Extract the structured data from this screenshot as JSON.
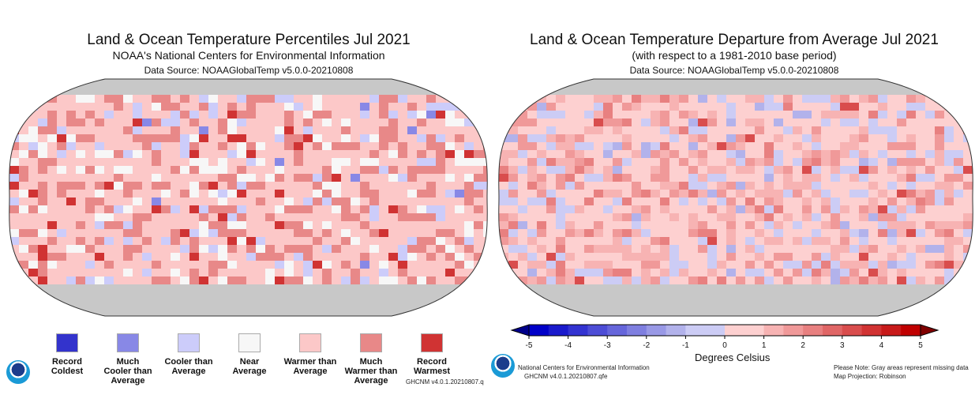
{
  "left_map": {
    "title": "Land & Ocean Temperature Percentiles Jul 2021",
    "subtitle": "NOAA's National Centers for Environmental Information",
    "data_source": "Data Source: NOAAGlobalTemp v5.0.0-20210808",
    "legend": [
      {
        "label_1": "Record",
        "label_2": "Coldest",
        "label_3": "",
        "color": "#3333cc"
      },
      {
        "label_1": "Much",
        "label_2": "Cooler than",
        "label_3": "Average",
        "color": "#8888e6"
      },
      {
        "label_1": "Cooler than",
        "label_2": "Average",
        "label_3": "",
        "color": "#ccccfa"
      },
      {
        "label_1": "Near",
        "label_2": "Average",
        "label_3": "",
        "color": "#f7f7f7"
      },
      {
        "label_1": "Warmer than",
        "label_2": "Average",
        "label_3": "",
        "color": "#fcc8c8"
      },
      {
        "label_1": "Much",
        "label_2": "Warmer than",
        "label_3": "Average",
        "color": "#e88888"
      },
      {
        "label_1": "Record",
        "label_2": "Warmest",
        "label_3": "",
        "color": "#d03333"
      }
    ],
    "footer": "GHCNM v4.0.1.20210807.q",
    "missing_color": "#c8c8c8"
  },
  "right_map": {
    "title": "Land & Ocean Temperature Departure from Average Jul 2021",
    "subtitle": "(with respect to a 1981-2010 base period)",
    "data_source": "Data Source: NOAAGlobalTemp v5.0.0-20210808",
    "colorbar": {
      "ticks": [
        "-5",
        "-4",
        "-3",
        "-2",
        "-1",
        "0",
        "1",
        "2",
        "3",
        "4",
        "5"
      ],
      "label": "Degrees Celsius",
      "colors": [
        "#0000c8",
        "#1a1acc",
        "#3333d1",
        "#4d4dd6",
        "#6666db",
        "#7f7fe0",
        "#9999e6",
        "#b2b2eb",
        "#ccccf5",
        "#fdd0d0",
        "#f7b3b3",
        "#f09999",
        "#e88080",
        "#e06666",
        "#d94d4d",
        "#d13333",
        "#c81a1a",
        "#c00000",
        "#800000"
      ]
    },
    "footer_left_1": "National Centers for Environmental Information",
    "footer_left_2": "GHCNM v4.0.1.20210807.qfe",
    "footer_right_1": "Please Note: Gray areas represent missing data",
    "footer_right_2": "Map Projection: Robinson"
  }
}
